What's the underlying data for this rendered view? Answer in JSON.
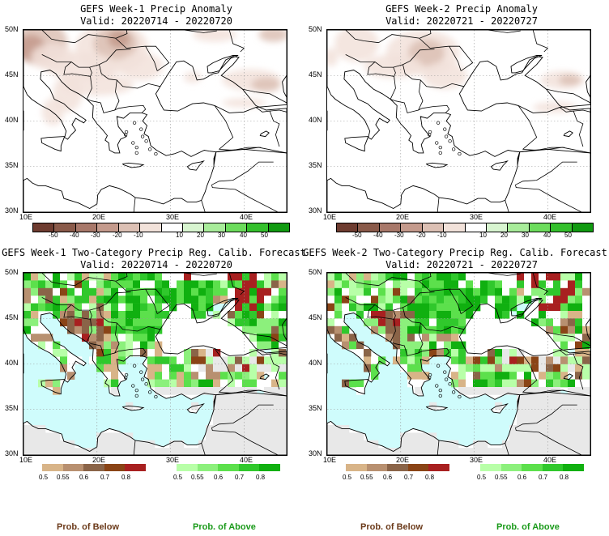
{
  "panels": [
    {
      "title": "GEFS Week-1 Precip Anomaly",
      "valid": "Valid: 20220714 - 20220720"
    },
    {
      "title": "GEFS Week-2 Precip Anomaly",
      "valid": "Valid: 20220721 - 20220727"
    },
    {
      "title": "GEFS Week-1 Two-Category Precip Reg. Calib. Forecast",
      "valid": "Valid: 20220714 - 20220720"
    },
    {
      "title": "GEFS Week-2 Two-Category Precip Reg. Calib. Forecast",
      "valid": "Valid: 20220721 - 20220727"
    }
  ],
  "axes": {
    "lat_labels": [
      "50N",
      "45N",
      "40N",
      "35N",
      "30N"
    ],
    "lon_labels": [
      "10E",
      "20E",
      "30E",
      "40E"
    ]
  },
  "anomaly_colorbar": {
    "labels": [
      "-50",
      "-40",
      "-30",
      "-20",
      "-10",
      "10",
      "20",
      "30",
      "40",
      "50"
    ],
    "colors": [
      "#6e3c30",
      "#8a5a4a",
      "#a8786a",
      "#c49a8c",
      "#dcc0b4",
      "#f2e2da",
      "#ffffff",
      "#d8f5d0",
      "#a8ec9a",
      "#6cdc5c",
      "#34c02c",
      "#109a10"
    ]
  },
  "below_colorbar": {
    "labels": [
      "0.5",
      "0.55",
      "0.6",
      "0.7",
      "0.8"
    ],
    "colors": [
      "#d8b488",
      "#b89070",
      "#8a6448",
      "#8a4416",
      "#a82020"
    ]
  },
  "above_colorbar": {
    "labels": [
      "0.5",
      "0.55",
      "0.6",
      "0.7",
      "0.8"
    ],
    "colors": [
      "#b8ffa8",
      "#8cf07c",
      "#5ce04c",
      "#30c82c",
      "#10b010"
    ]
  },
  "footer": {
    "below": "Prob. of Below",
    "above": "Prob. of Above"
  },
  "colors": {
    "sea": "#cffcfc",
    "gray_land": "#e8e8e8",
    "below_label": "#6b3a1a",
    "above_label": "#1a9a1a"
  }
}
